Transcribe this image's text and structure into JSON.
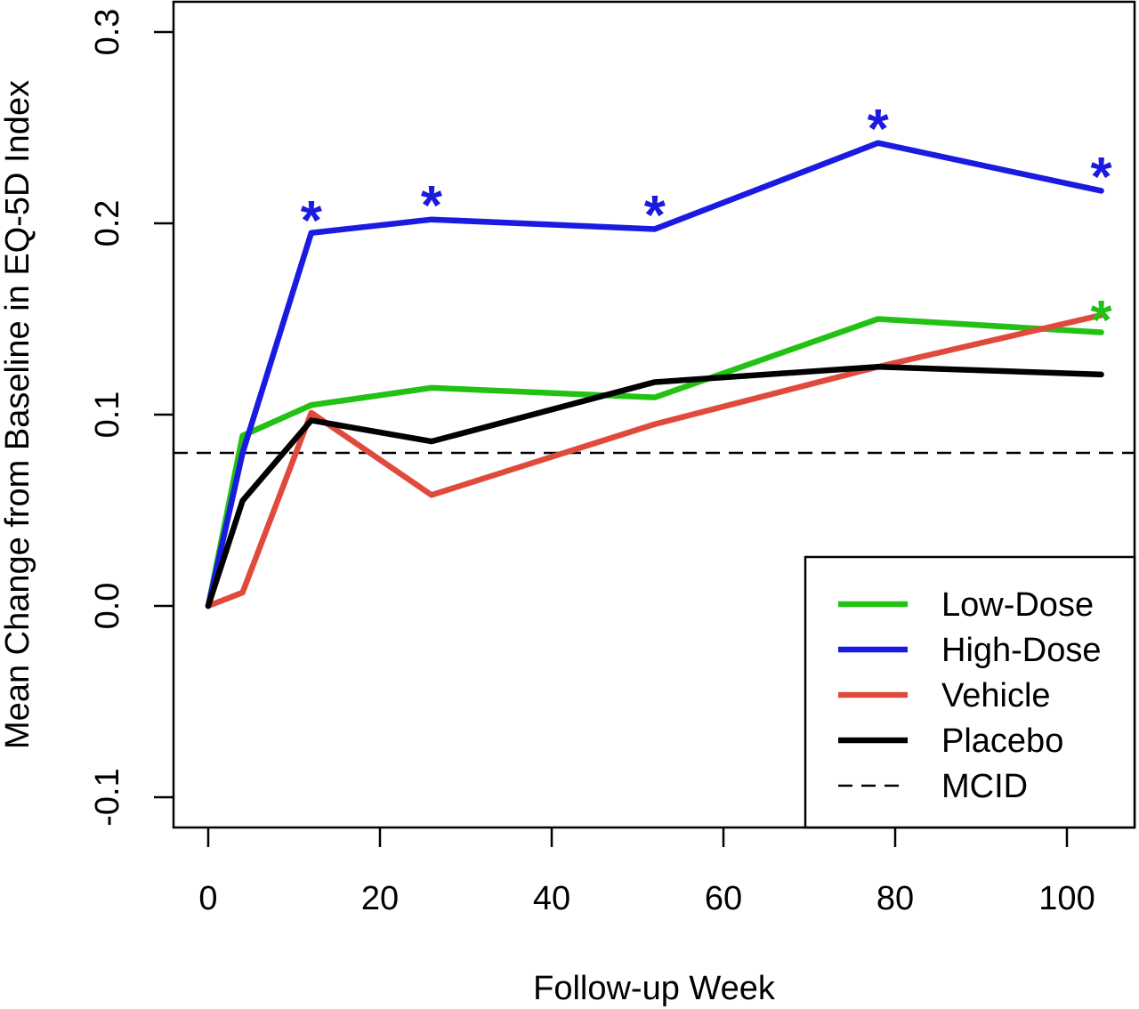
{
  "chart_data": {
    "type": "line",
    "title": "",
    "xlabel": "Follow-up Week",
    "ylabel": "Mean Change from Baseline in EQ-5D Index",
    "xlim": [
      -6,
      108
    ],
    "ylim": [
      -0.115,
      0.31
    ],
    "xticks": [
      0,
      20,
      40,
      60,
      80,
      100
    ],
    "xtick_labels": [
      "0",
      "20",
      "40",
      "60",
      "80",
      "100"
    ],
    "yticks": [
      -0.1,
      0.0,
      0.1,
      0.2,
      0.3
    ],
    "ytick_labels": [
      "-0.1",
      "0.0",
      "0.1",
      "0.2",
      "0.3"
    ],
    "grid": false,
    "legend_position": "bottom-right",
    "reference_line": {
      "name": "MCID",
      "y": 0.08,
      "color": "#000000",
      "style": "dashed"
    },
    "series": [
      {
        "name": "Low-Dose",
        "color": "#22c114",
        "x": [
          0,
          4,
          12,
          26,
          52,
          78,
          104
        ],
        "y": [
          0.0,
          0.089,
          0.105,
          0.114,
          0.109,
          0.15,
          0.143
        ]
      },
      {
        "name": "High-Dose",
        "color": "#1a1ae0",
        "x": [
          0,
          4,
          12,
          26,
          52,
          78,
          104
        ],
        "y": [
          0.0,
          0.08,
          0.195,
          0.202,
          0.197,
          0.242,
          0.217
        ]
      },
      {
        "name": "Vehicle",
        "color": "#e04a3c",
        "x": [
          0,
          4,
          12,
          26,
          52,
          78,
          104
        ],
        "y": [
          0.0,
          0.007,
          0.101,
          0.058,
          0.095,
          0.125,
          0.152
        ]
      },
      {
        "name": "Placebo",
        "color": "#000000",
        "x": [
          0,
          4,
          12,
          26,
          52,
          78,
          104
        ],
        "y": [
          0.0,
          0.055,
          0.097,
          0.086,
          0.117,
          0.125,
          0.121
        ]
      }
    ],
    "annotations": [
      {
        "text": "*",
        "x": 12,
        "y": 0.212,
        "color": "#1a1ae0"
      },
      {
        "text": "*",
        "x": 26,
        "y": 0.22,
        "color": "#1a1ae0"
      },
      {
        "text": "*",
        "x": 52,
        "y": 0.215,
        "color": "#1a1ae0"
      },
      {
        "text": "*",
        "x": 78,
        "y": 0.26,
        "color": "#1a1ae0"
      },
      {
        "text": "*",
        "x": 104,
        "y": 0.235,
        "color": "#1a1ae0"
      },
      {
        "text": "*",
        "x": 104,
        "y": 0.16,
        "color": "#22c114"
      }
    ]
  }
}
